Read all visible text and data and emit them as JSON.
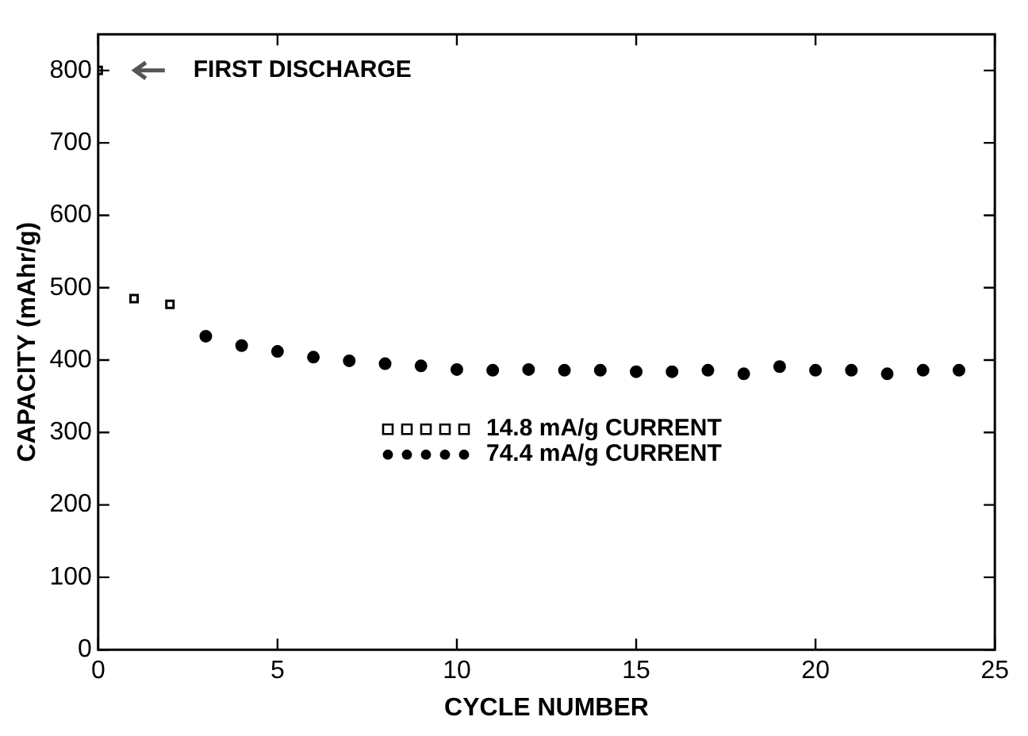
{
  "chart_data": {
    "type": "scatter",
    "xlabel": "CYCLE NUMBER",
    "ylabel": "CAPACITY (mAhr/g)",
    "xlim": [
      0,
      25
    ],
    "xticks": [
      0,
      5,
      10,
      15,
      20,
      25
    ],
    "ylim": [
      0,
      850
    ],
    "yticks": [
      0,
      100,
      200,
      300,
      400,
      500,
      600,
      700,
      800
    ],
    "grid": false,
    "legend": "center",
    "annotations": [
      "FIRST DISCHARGE"
    ],
    "series": [
      {
        "name": "14.8 mA/g CURRENT",
        "color": "#000000",
        "marker": "square",
        "x": [
          0,
          1,
          2
        ],
        "values": [
          800,
          485,
          477
        ]
      },
      {
        "name": "74.4 mA/g CURRENT",
        "color": "#000000",
        "marker": "circle",
        "x": [
          3,
          4,
          5,
          6,
          7,
          8,
          9,
          10,
          11,
          12,
          13,
          14,
          15,
          16,
          17,
          18,
          19,
          20,
          21,
          22,
          23,
          24
        ],
        "values": [
          433,
          420,
          412,
          404,
          399,
          395,
          392,
          387,
          386,
          387,
          386,
          386,
          384,
          384,
          386,
          381,
          391,
          386,
          386,
          381,
          386,
          386
        ]
      }
    ]
  }
}
